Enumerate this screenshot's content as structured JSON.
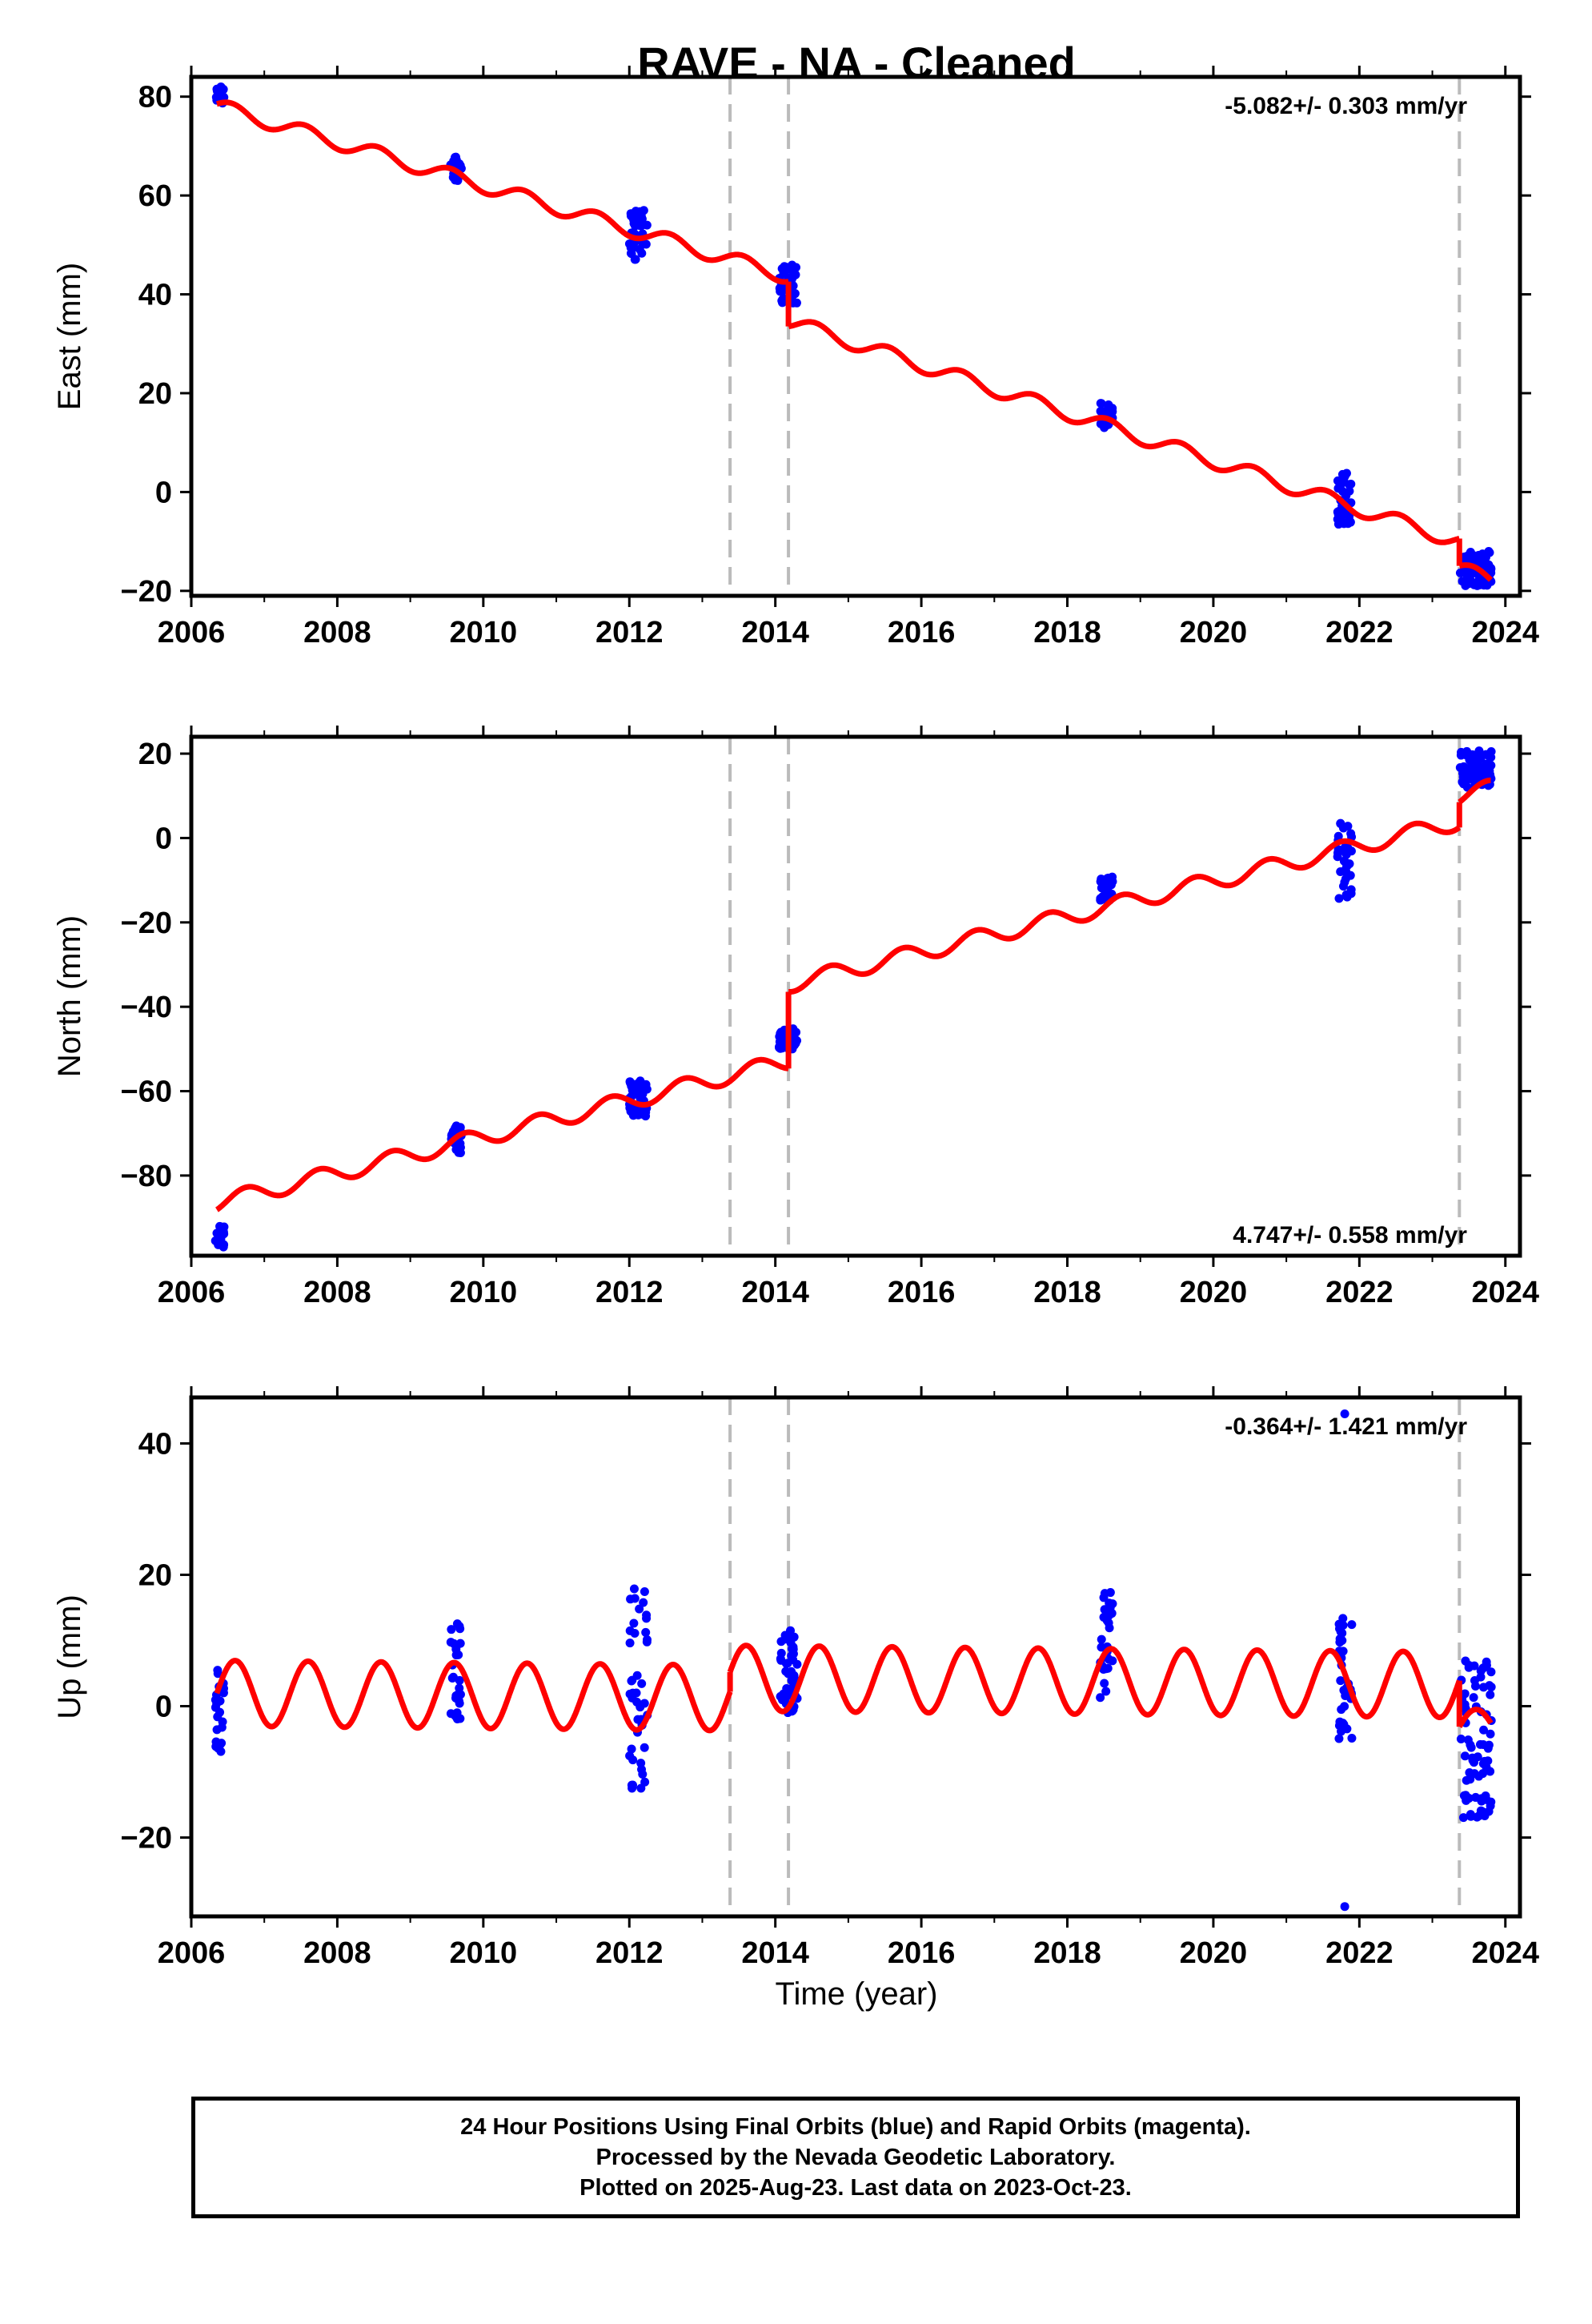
{
  "title": "RAVE  - NA - Cleaned",
  "xlabel": "Time (year)",
  "footer": {
    "line1": "24 Hour Positions Using Final Orbits (blue) and Rapid Orbits (magenta).",
    "line2": "Processed by the Nevada Geodetic Laboratory.",
    "line3": "Plotted on 2025-Aug-23. Last data on 2023-Oct-23."
  },
  "colors": {
    "points": "#0000ff",
    "model": "#ff0000",
    "events": "#bbbbbb",
    "frame": "#000000"
  },
  "chart_data": [
    {
      "type": "scatter",
      "ylabel": "East (mm)",
      "rate_label": "-5.082+/- 0.303 mm/yr",
      "rate_position": "top-right",
      "xlim": [
        2006.0,
        2024.2
      ],
      "ylim": [
        -21,
        84
      ],
      "xticks": [
        2006,
        2008,
        2010,
        2012,
        2014,
        2016,
        2018,
        2020,
        2022,
        2024
      ],
      "yticks": [
        -20,
        0,
        20,
        40,
        60,
        80
      ],
      "event_lines_x": [
        2013.38,
        2014.18,
        2023.37
      ],
      "model": {
        "segments": [
          {
            "t_start": 2006.35,
            "t_end": 2014.18,
            "intercept_at_2006": 79.6,
            "slope": -4.4,
            "annual_amplitude": 1.5,
            "phase": 2006.55
          },
          {
            "t_start": 2014.18,
            "t_end": 2023.37,
            "intercept_at_2006": 74.2,
            "slope": -4.85,
            "annual_amplitude": 1.5,
            "phase": 2006.55
          },
          {
            "t_start": 2023.37,
            "t_end": 2023.8,
            "intercept_at_2006": 73.0,
            "slope": -5.1,
            "annual_amplitude": 1.5,
            "phase": 2006.55
          }
        ]
      },
      "point_clusters": [
        {
          "t_start": 2006.33,
          "t_end": 2006.45,
          "y_min": 78,
          "y_max": 82
        },
        {
          "t_start": 2009.55,
          "t_end": 2009.7,
          "y_min": 63,
          "y_max": 68
        },
        {
          "t_start": 2012.0,
          "t_end": 2012.25,
          "y_min": 47,
          "y_max": 57
        },
        {
          "t_start": 2014.05,
          "t_end": 2014.3,
          "y_min": 38,
          "y_max": 46
        },
        {
          "t_start": 2018.45,
          "t_end": 2018.62,
          "y_min": 13,
          "y_max": 18
        },
        {
          "t_start": 2021.7,
          "t_end": 2021.9,
          "y_min": -7,
          "y_max": 4
        },
        {
          "t_start": 2023.38,
          "t_end": 2023.82,
          "y_min": -19,
          "y_max": -12
        }
      ]
    },
    {
      "type": "scatter",
      "ylabel": "North (mm)",
      "rate_label": "4.747+/- 0.558 mm/yr",
      "rate_position": "bottom-right",
      "xlim": [
        2006.0,
        2024.2
      ],
      "ylim": [
        -99,
        24
      ],
      "xticks": [
        2006,
        2008,
        2010,
        2012,
        2014,
        2016,
        2018,
        2020,
        2022,
        2024
      ],
      "yticks": [
        -80,
        -60,
        -40,
        -20,
        0,
        20
      ],
      "event_lines_x": [
        2013.38,
        2014.18,
        2023.37
      ],
      "model": {
        "segments": [
          {
            "t_start": 2006.35,
            "t_end": 2014.18,
            "intercept_at_2006": -88.0,
            "slope": 4.3,
            "annual_amplitude": 2.0,
            "phase": 2006.75
          },
          {
            "t_start": 2014.18,
            "t_end": 2023.37,
            "intercept_at_2006": -69.0,
            "slope": 4.2,
            "annual_amplitude": 2.0,
            "phase": 2006.75
          },
          {
            "t_start": 2023.37,
            "t_end": 2023.8,
            "intercept_at_2006": -63.0,
            "slope": 4.2,
            "annual_amplitude": 2.0,
            "phase": 2006.75
          }
        ]
      },
      "point_clusters": [
        {
          "t_start": 2006.33,
          "t_end": 2006.45,
          "y_min": -97,
          "y_max": -92
        },
        {
          "t_start": 2009.55,
          "t_end": 2009.7,
          "y_min": -75,
          "y_max": -68
        },
        {
          "t_start": 2012.0,
          "t_end": 2012.25,
          "y_min": -66,
          "y_max": -57
        },
        {
          "t_start": 2014.05,
          "t_end": 2014.3,
          "y_min": -50,
          "y_max": -45
        },
        {
          "t_start": 2018.45,
          "t_end": 2018.62,
          "y_min": -15,
          "y_max": -9
        },
        {
          "t_start": 2021.7,
          "t_end": 2021.9,
          "y_min": -15,
          "y_max": 4
        },
        {
          "t_start": 2023.38,
          "t_end": 2023.82,
          "y_min": 12,
          "y_max": 21
        }
      ]
    },
    {
      "type": "scatter",
      "ylabel": "Up (mm)",
      "rate_label": "-0.364+/- 1.421 mm/yr",
      "rate_position": "top-right",
      "xlim": [
        2006.0,
        2024.2
      ],
      "ylim": [
        -32,
        47
      ],
      "xticks": [
        2006,
        2008,
        2010,
        2012,
        2014,
        2016,
        2018,
        2020,
        2022,
        2024
      ],
      "yticks": [
        -20,
        0,
        20,
        40
      ],
      "event_lines_x": [
        2013.38,
        2014.18,
        2023.37
      ],
      "model": {
        "segments": [
          {
            "t_start": 2006.35,
            "t_end": 2013.38,
            "intercept_at_2006": 2.0,
            "slope": -0.1,
            "annual_amplitude": 5.0,
            "phase": 2006.6
          },
          {
            "t_start": 2013.38,
            "t_end": 2023.37,
            "intercept_at_2006": 5.0,
            "slope": -0.1,
            "annual_amplitude": 5.0,
            "phase": 2006.6
          },
          {
            "t_start": 2023.37,
            "t_end": 2023.8,
            "intercept_at_2006": -3.5,
            "slope": 0.0,
            "annual_amplitude": 3.0,
            "phase": 2006.6
          }
        ]
      },
      "point_clusters": [
        {
          "t_start": 2006.33,
          "t_end": 2006.45,
          "y_min": -7,
          "y_max": 6
        },
        {
          "t_start": 2009.55,
          "t_end": 2009.7,
          "y_min": -2,
          "y_max": 13
        },
        {
          "t_start": 2012.0,
          "t_end": 2012.25,
          "y_min": -13,
          "y_max": 18
        },
        {
          "t_start": 2014.05,
          "t_end": 2014.3,
          "y_min": -1,
          "y_max": 12
        },
        {
          "t_start": 2018.45,
          "t_end": 2018.62,
          "y_min": 1,
          "y_max": 19
        },
        {
          "t_start": 2021.7,
          "t_end": 2021.9,
          "y_min": -5,
          "y_max": 15
        },
        {
          "t_start": 2023.38,
          "t_end": 2023.82,
          "y_min": -17,
          "y_max": 7
        }
      ],
      "outliers": [
        {
          "x": 2021.8,
          "y": 44.5
        },
        {
          "x": 2021.8,
          "y": -30.5
        }
      ]
    }
  ]
}
